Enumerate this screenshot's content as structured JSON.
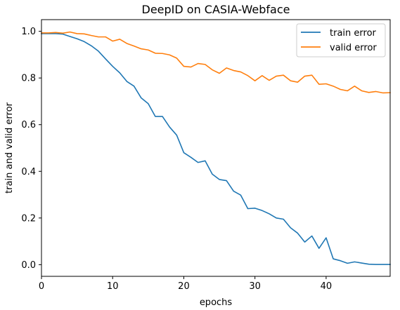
{
  "chart_data": {
    "type": "line",
    "title": "DeepID on CASIA-Webface",
    "xlabel": "epochs",
    "ylabel": "train and valid error",
    "xlim": [
      0,
      49
    ],
    "ylim": [
      -0.05,
      1.05
    ],
    "x_ticks": [
      0,
      10,
      20,
      30,
      40
    ],
    "y_ticks": [
      0.0,
      0.2,
      0.4,
      0.6,
      0.8,
      1.0
    ],
    "grid": false,
    "legend_position": "top-right",
    "series": [
      {
        "name": "train error",
        "color": "#1f77b4",
        "x": [
          0,
          1,
          2,
          3,
          4,
          5,
          6,
          7,
          8,
          9,
          10,
          11,
          12,
          13,
          14,
          15,
          16,
          17,
          18,
          19,
          20,
          21,
          22,
          23,
          24,
          25,
          26,
          27,
          28,
          29,
          30,
          31,
          32,
          33,
          34,
          35,
          36,
          37,
          38,
          39,
          40,
          41,
          42,
          43,
          44,
          45,
          46,
          47,
          48,
          49
        ],
        "values": [
          0.99,
          0.99,
          0.99,
          0.988,
          0.978,
          0.968,
          0.956,
          0.938,
          0.915,
          0.882,
          0.85,
          0.822,
          0.785,
          0.765,
          0.715,
          0.69,
          0.635,
          0.635,
          0.59,
          0.555,
          0.48,
          0.46,
          0.438,
          0.445,
          0.388,
          0.365,
          0.36,
          0.315,
          0.298,
          0.24,
          0.242,
          0.232,
          0.218,
          0.2,
          0.195,
          0.158,
          0.135,
          0.097,
          0.123,
          0.07,
          0.115,
          0.025,
          0.017,
          0.006,
          0.012,
          0.007,
          0.002,
          0.001,
          0.001,
          0.001
        ]
      },
      {
        "name": "valid error",
        "color": "#ff7f0e",
        "x": [
          0,
          1,
          2,
          3,
          4,
          5,
          6,
          7,
          8,
          9,
          10,
          11,
          12,
          13,
          14,
          15,
          16,
          17,
          18,
          19,
          20,
          21,
          22,
          23,
          24,
          25,
          26,
          27,
          28,
          29,
          30,
          31,
          32,
          33,
          34,
          35,
          36,
          37,
          38,
          39,
          40,
          41,
          42,
          43,
          44,
          45,
          46,
          47,
          48,
          49
        ],
        "values": [
          0.993,
          0.993,
          0.995,
          0.992,
          0.997,
          0.99,
          0.989,
          0.982,
          0.976,
          0.976,
          0.958,
          0.966,
          0.948,
          0.937,
          0.925,
          0.92,
          0.906,
          0.905,
          0.899,
          0.885,
          0.85,
          0.847,
          0.862,
          0.858,
          0.835,
          0.82,
          0.843,
          0.832,
          0.826,
          0.81,
          0.788,
          0.81,
          0.79,
          0.808,
          0.812,
          0.788,
          0.782,
          0.808,
          0.812,
          0.773,
          0.775,
          0.765,
          0.751,
          0.745,
          0.765,
          0.745,
          0.738,
          0.742,
          0.736,
          0.737
        ]
      }
    ]
  }
}
